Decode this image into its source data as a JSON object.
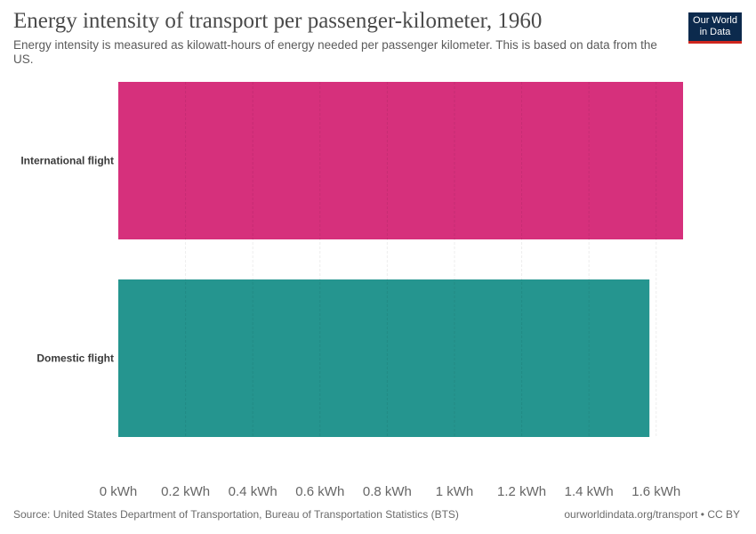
{
  "header": {
    "title": "Energy intensity of transport per passenger-kilometer, 1960",
    "subtitle": "Energy intensity is measured as kilowatt-hours of energy needed per passenger kilometer. This is based on data from the US."
  },
  "logo": {
    "line1": "Our World",
    "line2": "in Data",
    "bg_color": "#0c2a4d",
    "accent_color": "#ce261e"
  },
  "footer": {
    "source": "Source: United States Department of Transportation, Bureau of Transportation Statistics (BTS)",
    "license": "ourworldindata.org/transport • CC BY"
  },
  "chart_data": {
    "type": "bar",
    "orientation": "horizontal",
    "categories": [
      "International flight",
      "Domestic flight"
    ],
    "values": [
      1.68,
      1.58
    ],
    "colors": [
      "#d6307c",
      "#25958f"
    ],
    "unit": "kWh",
    "xlim": [
      0,
      1.68
    ],
    "ticks": [
      0,
      0.2,
      0.4,
      0.6,
      0.8,
      1,
      1.2,
      1.4,
      1.6
    ],
    "tick_labels": [
      "0 kWh",
      "0.2 kWh",
      "0.4 kWh",
      "0.6 kWh",
      "0.8 kWh",
      "1 kWh",
      "1.2 kWh",
      "1.4 kWh",
      "1.6 kWh"
    ],
    "grid": true,
    "title": "Energy intensity of transport per passenger-kilometer, 1960",
    "xlabel": "",
    "ylabel": ""
  }
}
